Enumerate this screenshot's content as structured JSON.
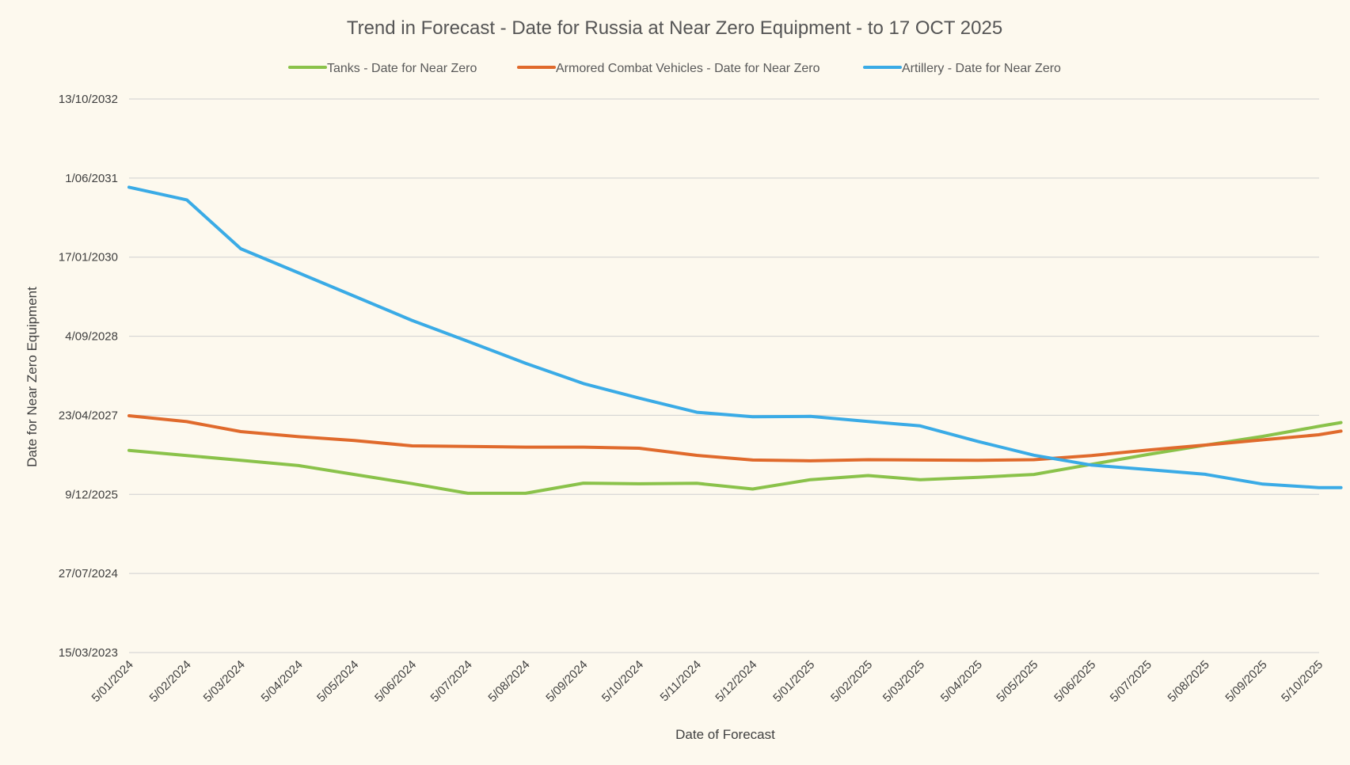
{
  "chart_data": {
    "type": "line",
    "title": "Trend in Forecast - Date for Russia at Near Zero Equipment - to 17 OCT 2025",
    "xlabel": "Date of Forecast",
    "ylabel": "Date for Near Zero Equipment",
    "x_ticks": [
      "5/01/2024",
      "5/02/2024",
      "5/03/2024",
      "5/04/2024",
      "5/05/2024",
      "5/06/2024",
      "5/07/2024",
      "5/08/2024",
      "5/09/2024",
      "5/10/2024",
      "5/11/2024",
      "5/12/2024",
      "5/01/2025",
      "5/02/2025",
      "5/03/2025",
      "5/04/2025",
      "5/05/2025",
      "5/06/2025",
      "5/07/2025",
      "5/08/2025",
      "5/09/2025",
      "5/10/2025"
    ],
    "y_ticks": [
      "13/10/2032",
      "1/06/2031",
      "17/01/2030",
      "4/09/2028",
      "23/04/2027",
      "9/12/2025",
      "27/07/2024",
      "15/03/2023"
    ],
    "legend_position": "top",
    "grid": "horizontal",
    "series": [
      {
        "name": "Tanks - Date for Near Zero",
        "color": "#8ac24a",
        "points": [
          [
            "5/01/2024",
            "13/09/2026"
          ],
          [
            "5/02/2024",
            "12/08/2026"
          ],
          [
            "5/03/2024",
            "12/07/2026"
          ],
          [
            "5/04/2024",
            "9/06/2026"
          ],
          [
            "5/05/2024",
            "14/04/2026"
          ],
          [
            "5/06/2024",
            "15/02/2026"
          ],
          [
            "5/07/2024",
            "16/12/2025"
          ],
          [
            "5/08/2024",
            "16/12/2025"
          ],
          [
            "5/09/2024",
            "18/02/2026"
          ],
          [
            "5/10/2024",
            "14/02/2026"
          ],
          [
            "5/11/2024",
            "17/02/2026"
          ],
          [
            "5/12/2024",
            "12/01/2026"
          ],
          [
            "5/01/2025",
            "12/03/2026"
          ],
          [
            "5/02/2025",
            "7/04/2026"
          ],
          [
            "5/03/2025",
            "12/03/2026"
          ],
          [
            "5/04/2025",
            "27/03/2026"
          ],
          [
            "5/05/2025",
            "14/04/2026"
          ],
          [
            "5/06/2025",
            "17/06/2026"
          ],
          [
            "5/07/2025",
            "18/08/2026"
          ],
          [
            "5/08/2025",
            "16/10/2026"
          ],
          [
            "5/09/2025",
            "11/12/2026"
          ],
          [
            "5/10/2025",
            "12/02/2027"
          ],
          [
            "17/10/2025",
            "8/03/2027"
          ]
        ]
      },
      {
        "name": "Armored Combat Vehicles - Date for Near Zero",
        "color": "#e06a2c",
        "points": [
          [
            "5/01/2024",
            "20/04/2027"
          ],
          [
            "5/02/2024",
            "14/03/2027"
          ],
          [
            "5/03/2024",
            "10/01/2027"
          ],
          [
            "5/04/2024",
            "9/12/2026"
          ],
          [
            "5/05/2024",
            "15/11/2026"
          ],
          [
            "5/06/2024",
            "12/10/2026"
          ],
          [
            "5/07/2024",
            "8/10/2026"
          ],
          [
            "5/08/2024",
            "4/10/2026"
          ],
          [
            "5/09/2024",
            "4/10/2026"
          ],
          [
            "5/10/2024",
            "27/09/2026"
          ],
          [
            "5/11/2024",
            "13/08/2026"
          ],
          [
            "5/12/2024",
            "14/07/2026"
          ],
          [
            "5/01/2025",
            "9/07/2026"
          ],
          [
            "5/02/2025",
            "16/07/2026"
          ],
          [
            "5/03/2025",
            "14/07/2026"
          ],
          [
            "5/04/2025",
            "12/07/2026"
          ],
          [
            "5/05/2025",
            "16/07/2026"
          ],
          [
            "5/06/2025",
            "12/08/2026"
          ],
          [
            "5/07/2025",
            "15/09/2026"
          ],
          [
            "5/08/2025",
            "17/10/2026"
          ],
          [
            "5/09/2025",
            "19/11/2026"
          ],
          [
            "5/10/2025",
            "21/12/2026"
          ],
          [
            "17/10/2025",
            "13/01/2027"
          ]
        ]
      },
      {
        "name": "Artillery - Date for Near Zero",
        "color": "#3aabe6",
        "points": [
          [
            "5/01/2024",
            "4/04/2031"
          ],
          [
            "5/02/2024",
            "14/01/2031"
          ],
          [
            "5/03/2024",
            "11/03/2030"
          ],
          [
            "5/04/2024",
            "10/10/2029"
          ],
          [
            "5/05/2024",
            "15/05/2029"
          ],
          [
            "5/06/2024",
            "13/12/2028"
          ],
          [
            "5/07/2024",
            "3/08/2028"
          ],
          [
            "5/08/2024",
            "17/03/2028"
          ],
          [
            "5/09/2024",
            "10/11/2027"
          ],
          [
            "5/10/2024",
            "10/08/2027"
          ],
          [
            "5/11/2024",
            "12/05/2027"
          ],
          [
            "5/12/2024",
            "14/04/2027"
          ],
          [
            "5/01/2025",
            "16/04/2027"
          ],
          [
            "5/02/2025",
            "15/03/2027"
          ],
          [
            "5/03/2025",
            "15/02/2027"
          ],
          [
            "5/04/2025",
            "9/11/2026"
          ],
          [
            "5/05/2025",
            "14/08/2026"
          ],
          [
            "5/06/2025",
            "12/06/2026"
          ],
          [
            "5/07/2025",
            "15/05/2026"
          ],
          [
            "5/08/2025",
            "15/04/2026"
          ],
          [
            "5/09/2025",
            "12/02/2026"
          ],
          [
            "5/10/2025",
            "21/01/2026"
          ],
          [
            "17/10/2025",
            "21/01/2026"
          ]
        ]
      }
    ]
  }
}
